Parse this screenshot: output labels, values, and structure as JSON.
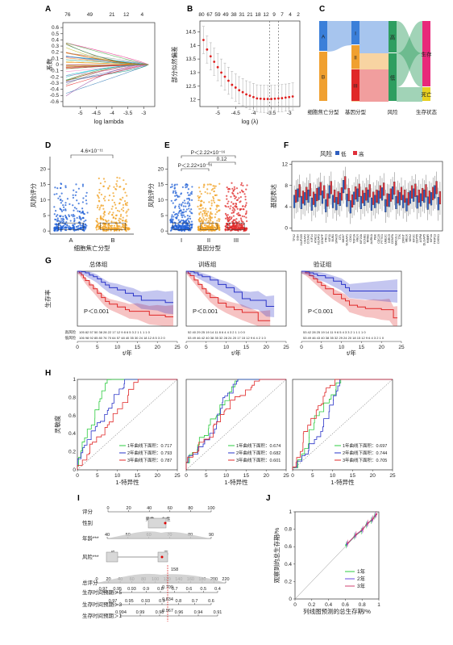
{
  "figure": {
    "panel_letters": [
      "A",
      "B",
      "C",
      "D",
      "E",
      "F",
      "G",
      "H",
      "I",
      "J"
    ]
  },
  "chart_data": [
    {
      "id": "A",
      "type": "line",
      "title": "",
      "xlabel": "log lambda",
      "ylabel": "系数",
      "top_labels": [
        "76",
        "49",
        "21",
        "12",
        "4"
      ],
      "top_label_x": [
        -5.4,
        -4.7,
        -4.0,
        -3.55,
        -3.05
      ],
      "xticks": [
        -5.0,
        -4.5,
        -4.0,
        -3.5,
        -3.0
      ],
      "xlim": [
        -5.55,
        -2.65
      ],
      "yticks": [
        -0.6,
        -0.5,
        -0.4,
        -0.3,
        -0.2,
        -0.1,
        0.0,
        0.1,
        0.2,
        0.3,
        0.4,
        0.5,
        0.6
      ],
      "ylim": [
        -0.68,
        0.68
      ],
      "start_x": -5.45,
      "zero_x": -2.85,
      "n_lines": 40
    },
    {
      "id": "B",
      "type": "scatter",
      "xlabel": "log (λ)",
      "ylabel": "部分似然偏差",
      "top_labels": [
        "80",
        "67",
        "59",
        "49",
        "38",
        "31",
        "21",
        "18",
        "12",
        "9",
        "7",
        "4",
        "2"
      ],
      "xticks": [
        -5.0,
        -4.5,
        -4.0,
        -3.5,
        -3.0
      ],
      "xlim": [
        -5.5,
        -2.7
      ],
      "yticks": [
        12.0,
        12.5,
        13.0,
        13.5,
        14.0,
        14.5
      ],
      "ylim": [
        11.75,
        14.9
      ],
      "x": [
        -5.4,
        -5.3,
        -5.2,
        -5.1,
        -5.0,
        -4.9,
        -4.8,
        -4.7,
        -4.6,
        -4.5,
        -4.4,
        -4.3,
        -4.2,
        -4.1,
        -4.0,
        -3.9,
        -3.8,
        -3.7,
        -3.6,
        -3.5,
        -3.4,
        -3.3,
        -3.2,
        -3.1,
        -3.0,
        -2.9
      ],
      "y": [
        14.2,
        13.85,
        13.6,
        13.4,
        13.2,
        13.0,
        12.85,
        12.7,
        12.55,
        12.45,
        12.35,
        12.28,
        12.2,
        12.15,
        12.1,
        12.05,
        12.04,
        12.03,
        12.03,
        12.03,
        12.04,
        12.05,
        12.06,
        12.08,
        12.1,
        12.12
      ],
      "err": [
        0.5,
        0.5,
        0.5,
        0.5,
        0.5,
        0.5,
        0.5,
        0.5,
        0.5,
        0.5,
        0.5,
        0.5,
        0.5,
        0.5,
        0.5,
        0.5,
        0.5,
        0.5,
        0.5,
        0.5,
        0.5,
        0.5,
        0.5,
        0.5,
        0.5,
        0.5
      ],
      "vlines": [
        -3.55,
        -3.3
      ]
    },
    {
      "id": "C",
      "type": "sankey",
      "axes": [
        "细胞焦亡分型",
        "基因分型",
        "风险",
        "生存状态"
      ],
      "nodes": [
        {
          "axis": 0,
          "label": "A",
          "color": "#3b7fd9",
          "from": 0.0,
          "to": 0.38
        },
        {
          "axis": 0,
          "label": "B",
          "color": "#f0a030",
          "from": 0.38,
          "to": 1.0
        },
        {
          "axis": 1,
          "label": "I",
          "color": "#3b7fd9",
          "from": 0.0,
          "to": 0.3
        },
        {
          "axis": 1,
          "label": "II",
          "color": "#f0a030",
          "from": 0.3,
          "to": 0.6
        },
        {
          "axis": 1,
          "label": "III",
          "color": "#e02828",
          "from": 0.6,
          "to": 1.0
        },
        {
          "axis": 2,
          "label": "高",
          "color": "#2e9e60",
          "from": 0.0,
          "to": 0.4
        },
        {
          "axis": 2,
          "label": "低",
          "color": "#2e9e60",
          "from": 0.4,
          "to": 1.0
        },
        {
          "axis": 3,
          "label": "生存",
          "color": "#e8287a",
          "from": 0.0,
          "to": 0.82
        },
        {
          "axis": 3,
          "label": "死亡",
          "color": "#e8d020",
          "from": 0.82,
          "to": 1.0
        }
      ]
    },
    {
      "id": "D",
      "type": "scatter",
      "xlabel": "细胞焦亡分型",
      "ylabel": "风险评分",
      "categories": [
        "A",
        "B"
      ],
      "colors": [
        "#1f5fd6",
        "#f0a020"
      ],
      "yticks": [
        0,
        5,
        10,
        15,
        20
      ],
      "ylim": [
        -1,
        24
      ],
      "annotation": "4.6×10⁻¹¹"
    },
    {
      "id": "E",
      "type": "scatter",
      "xlabel": "基因分型",
      "ylabel": "风险评分",
      "categories": [
        "I",
        "II",
        "III"
      ],
      "colors": [
        "#1f5fd6",
        "#f0a020",
        "#e02828"
      ],
      "yticks": [
        0,
        5,
        10,
        15,
        20
      ],
      "ylim": [
        -1,
        24
      ],
      "annotations": [
        "P＜2.22×10⁻¹⁶",
        "0.12",
        "P＜2.22×10⁻¹⁶"
      ]
    },
    {
      "id": "F",
      "type": "box",
      "ylabel": "基因表达",
      "legend_title": "风险",
      "legend": [
        "低",
        "高"
      ],
      "colors": [
        "#2f5fc0",
        "#e0303a"
      ],
      "yticks": [
        0,
        4,
        8,
        12
      ],
      "ylim": [
        -0.5,
        12.5
      ],
      "genes": [
        "TPX2",
        "GGH",
        "NUP205",
        "CKAP2",
        "CCNA2",
        "KIF14",
        "ATAD2",
        "NCAPG",
        "CENPF",
        "PRC1",
        "KIF11",
        "BUB1",
        "SPAG5",
        "DTL",
        "MKI67",
        "NUSAP1",
        "CDK1",
        "TOP2A",
        "ANLN",
        "KIF20A",
        "CCNB1",
        "RRM2",
        "AURKA",
        "PBK",
        "CDC20",
        "PTTG1",
        "UBE2C",
        "BIRC5",
        "CENPA",
        "MAD2L1",
        "TTK",
        "ZWINT",
        "MELK",
        "NEK2",
        "KIF2C",
        "CEP55",
        "ASPM",
        "DLGAP5",
        "HMMR",
        "KIF4A",
        "TRIP13",
        "CHEK1"
      ],
      "low_median": [
        5.0,
        6.2,
        4.8,
        5.5,
        6.0,
        4.5,
        5.2,
        6.5,
        5.8,
        4.2,
        6.8,
        5.0,
        4.6,
        5.4,
        7.8,
        5.2,
        4.0,
        5.6,
        6.2,
        4.8,
        5.4,
        6.0,
        4.5,
        5.0,
        5.8,
        6.4,
        4.2,
        5.2,
        6.6,
        4.8,
        5.5,
        5.0,
        4.4,
        5.8,
        6.2,
        4.9,
        5.3,
        6.0,
        4.7,
        5.5,
        6.8,
        4.6
      ],
      "high_median": [
        6.0,
        7.0,
        5.8,
        6.5,
        7.2,
        5.6,
        6.3,
        7.4,
        6.8,
        5.3,
        7.6,
        6.0,
        5.7,
        6.4,
        8.5,
        6.3,
        5.1,
        6.6,
        7.1,
        5.9,
        6.4,
        7.0,
        5.6,
        6.0,
        6.8,
        7.3,
        5.3,
        6.2,
        7.5,
        5.9,
        6.5,
        6.0,
        5.5,
        6.8,
        7.1,
        6.0,
        6.3,
        7.0,
        5.8,
        6.5,
        7.6,
        5.7
      ]
    },
    {
      "id": "G",
      "type": "line",
      "ylabel": "生存率",
      "xlabel": "t/年",
      "panels": [
        {
          "title": "总体组",
          "p": "P＜0.001",
          "risk_high": "105 82 57 50 38 28 22 17 12 9 8 6 5 3 2 1 1 1 1 0",
          "risk_low": "106 98 92 85 80 76 70 64 57 48 40 35 30 24 18 12 8 5 3 2 0",
          "high_x": [
            0,
            0.5,
            1,
            1.5,
            2,
            3,
            4,
            5,
            6,
            7,
            8,
            10,
            12,
            13,
            15,
            18,
            20,
            22,
            24
          ],
          "high_y": [
            1,
            0.97,
            0.93,
            0.88,
            0.83,
            0.75,
            0.68,
            0.6,
            0.52,
            0.45,
            0.4,
            0.35,
            0.3,
            0.27,
            0.27,
            0.2,
            0.2,
            0.17,
            0.17
          ],
          "low_x": [
            0,
            1,
            2,
            3,
            4,
            5,
            6,
            7,
            8,
            10,
            12,
            14,
            16,
            18,
            20,
            22,
            24
          ],
          "low_y": [
            1,
            0.99,
            0.97,
            0.93,
            0.9,
            0.86,
            0.8,
            0.75,
            0.7,
            0.66,
            0.6,
            0.55,
            0.47,
            0.47,
            0.47,
            0.43,
            0.43
          ]
        },
        {
          "title": "训练组",
          "p": "P＜0.001",
          "risk_high": "52 40 29 25 19 14 11 8 6 4 4 3 2 1 1 0 0",
          "risk_low": "53 49 46 42 40 38 35 32 28 24 20 17 15 12 9 6 4 2 1 0",
          "high_x": [
            0,
            0.5,
            1,
            2,
            3,
            4,
            5,
            6,
            8,
            10,
            12,
            14,
            18,
            21
          ],
          "high_y": [
            1,
            0.96,
            0.92,
            0.84,
            0.76,
            0.68,
            0.6,
            0.52,
            0.42,
            0.35,
            0.3,
            0.25,
            0.1,
            0.1
          ],
          "low_x": [
            0,
            1,
            2,
            3,
            4,
            6,
            8,
            10,
            12,
            14,
            16,
            18,
            20,
            22
          ],
          "low_y": [
            1,
            0.99,
            0.97,
            0.93,
            0.9,
            0.84,
            0.76,
            0.7,
            0.62,
            0.5,
            0.47,
            0.47,
            0.36,
            0.36
          ]
        },
        {
          "title": "验证组",
          "p": "P＜0.001",
          "risk_high": "53 42 28 25 19 14 11 9 6 5 4 3 3 2 1 1 1 1 0",
          "risk_low": "53 49 46 43 40 38 35 32 29 24 20 18 15 12 9 6 4 3 2 1 0",
          "high_x": [
            0,
            1,
            2,
            3,
            4,
            5,
            6,
            8,
            10,
            11,
            12,
            14,
            16,
            18,
            20,
            22,
            23,
            24
          ],
          "high_y": [
            1,
            0.97,
            0.92,
            0.86,
            0.8,
            0.74,
            0.68,
            0.58,
            0.5,
            0.46,
            0.38,
            0.35,
            0.32,
            0.32,
            0.3,
            0.3,
            0.15,
            0.15
          ],
          "low_x": [
            0,
            1,
            2,
            3,
            4,
            6,
            8,
            10,
            11,
            12,
            14,
            16,
            18,
            20,
            22,
            24
          ],
          "low_y": [
            1,
            0.99,
            0.97,
            0.95,
            0.92,
            0.88,
            0.82,
            0.76,
            0.7,
            0.64,
            0.64,
            0.64,
            0.64,
            0.64,
            0.64,
            0.64
          ]
        }
      ],
      "row_labels": [
        "高风险",
        "低风险"
      ],
      "xticks": [
        0,
        5,
        10,
        15,
        20,
        25
      ],
      "xlim": [
        0,
        25
      ],
      "yticks": [
        0,
        0.25,
        0.5,
        0.75,
        1
      ],
      "ylim": [
        0,
        1
      ],
      "colors": {
        "high": "#e02828",
        "low": "#2a34c8"
      }
    },
    {
      "id": "H",
      "type": "line",
      "ylabel": "灵敏度",
      "xlabel": "1-特异性",
      "panels": [
        {
          "legend": [
            "1年曲线下面积：0.717",
            "2年曲线下面积：0.793",
            "3年曲线下面积：0.787"
          ]
        },
        {
          "legend": [
            "1年曲线下面积：0.674",
            "2年曲线下面积：0.682",
            "3年曲线下面积：0.601"
          ]
        },
        {
          "legend": [
            "1年曲线下面积：0.697",
            "2年曲线下面积：0.744",
            "3年曲线下面积：0.705"
          ]
        }
      ],
      "colors": [
        "#2ecc40",
        "#2a34c8",
        "#e02828"
      ],
      "xticks": [
        0,
        5,
        10,
        15,
        20,
        25
      ],
      "yticks": [
        0.0,
        0.2,
        0.4,
        0.6,
        0.8,
        1.0
      ]
    },
    {
      "id": "I",
      "type": "nomogram",
      "rows": [
        {
          "label": "评分",
          "ticks": [
            "0",
            "20",
            "40",
            "60",
            "80",
            "100"
          ]
        },
        {
          "label": "性别",
          "ticks": [
            "男性",
            "女性"
          ]
        },
        {
          "label": "年龄***",
          "ticks": [
            "40",
            "50",
            "60",
            "70",
            "80",
            "90"
          ]
        },
        {
          "label": "风险***",
          "ticks": [
            "低",
            "高"
          ]
        },
        {
          "label": "总评分",
          "ticks": [
            "0",
            "20",
            "40",
            "60",
            "80",
            "100",
            "120",
            "140",
            "160",
            "180",
            "200",
            "220"
          ]
        },
        {
          "label": "生存时间预期＞5",
          "ticks": [
            "0.97",
            "0.95",
            "0.93",
            "0.9",
            "0.8",
            "0.7",
            "0.6",
            "0.5",
            "0.4"
          ]
        },
        {
          "label": "生存时间预期＞3",
          "ticks": [
            "0.97",
            "0.95",
            "0.93",
            "0.9",
            "0.8",
            "0.7",
            "0.6"
          ]
        },
        {
          "label": "生存时间预期＞1",
          "ticks": [
            "0.994",
            "0.99",
            "0.98",
            "0.96",
            "0.94",
            "0.91"
          ]
        }
      ],
      "point_total": "158",
      "point_values": [
        "0.709",
        "0.834",
        "0.967"
      ]
    },
    {
      "id": "J",
      "type": "line",
      "xlabel": "列线图预测的总生存期/%",
      "ylabel": "观察到的总生存期/%",
      "legend": [
        "1年",
        "2年",
        "3年"
      ],
      "colors": [
        "#2ecc40",
        "#6a4ae0",
        "#d04070"
      ],
      "xticks": [
        0.0,
        0.2,
        0.4,
        0.6,
        0.8,
        1.0
      ],
      "yticks": [
        0.0,
        0.2,
        0.4,
        0.6,
        0.8,
        1.0
      ],
      "x": [
        0.62,
        0.72,
        0.8,
        0.86,
        0.92,
        0.96
      ],
      "y": [
        0.63,
        0.73,
        0.79,
        0.86,
        0.91,
        0.96
      ]
    }
  ]
}
